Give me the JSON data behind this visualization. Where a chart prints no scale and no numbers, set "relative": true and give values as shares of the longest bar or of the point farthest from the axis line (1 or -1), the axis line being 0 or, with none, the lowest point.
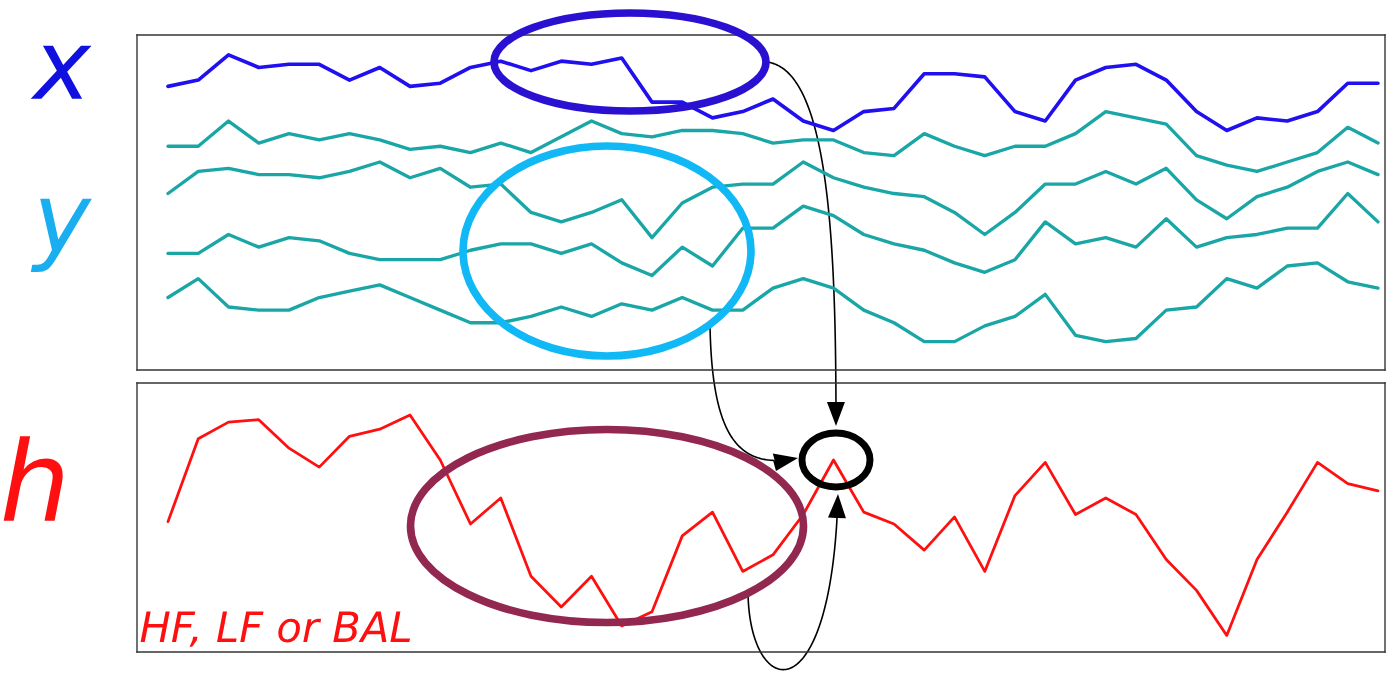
{
  "chart_data": [
    {
      "type": "line",
      "relative": true,
      "annotations": [
        "x",
        "y"
      ],
      "categories": [
        null,
        null,
        null,
        null,
        null,
        null,
        null,
        null,
        null,
        null,
        null,
        null,
        null,
        null,
        null,
        null,
        null,
        null,
        null,
        null,
        null,
        null,
        null,
        null,
        null,
        null,
        null,
        null,
        null,
        null,
        null,
        null,
        null,
        null,
        null,
        null,
        null,
        null,
        null,
        null,
        null
      ],
      "series": [
        {
          "color": "#2010f0",
          "values": [
            0.9,
            0.92,
            1,
            0.96,
            0.97,
            0.97,
            0.92,
            0.96,
            0.9,
            0.91,
            0.96,
            0.98,
            0.95,
            0.98,
            0.97,
            0.99,
            0.85,
            0.85,
            0.8,
            0.82,
            0.86,
            0.79,
            0.76,
            0.82,
            0.83,
            0.94,
            0.94,
            0.93,
            0.82,
            0.79,
            0.92,
            0.96,
            0.97,
            0.92,
            0.82,
            0.76,
            0.8,
            0.79,
            0.82,
            0.91,
            0.91
          ]
        },
        {
          "color": "#1aa6a6",
          "values": [
            0.71,
            0.71,
            0.79,
            0.72,
            0.75,
            0.73,
            0.75,
            0.73,
            0.7,
            0.71,
            0.69,
            0.72,
            0.69,
            0.74,
            0.79,
            0.75,
            0.74,
            0.76,
            0.76,
            0.75,
            0.72,
            0.73,
            0.73,
            0.69,
            0.68,
            0.75,
            0.71,
            0.68,
            0.71,
            0.71,
            0.75,
            0.82,
            0.8,
            0.78,
            0.68,
            0.65,
            0.63,
            0.66,
            0.69,
            0.77,
            0.72
          ]
        },
        {
          "color": "#1aa6a6",
          "values": [
            0.56,
            0.63,
            0.64,
            0.62,
            0.62,
            0.61,
            0.63,
            0.66,
            0.61,
            0.64,
            0.58,
            0.59,
            0.5,
            0.47,
            0.5,
            0.54,
            0.42,
            0.53,
            0.58,
            0.59,
            0.59,
            0.66,
            0.61,
            0.58,
            0.56,
            0.55,
            0.5,
            0.43,
            0.5,
            0.59,
            0.59,
            0.63,
            0.59,
            0.64,
            0.54,
            0.48,
            0.55,
            0.58,
            0.63,
            0.66,
            0.62
          ]
        },
        {
          "color": "#1aa6a6",
          "values": [
            0.37,
            0.37,
            0.43,
            0.39,
            0.42,
            0.41,
            0.37,
            0.35,
            0.35,
            0.35,
            0.38,
            0.4,
            0.4,
            0.37,
            0.4,
            0.34,
            0.3,
            0.39,
            0.33,
            0.45,
            0.45,
            0.52,
            0.49,
            0.43,
            0.4,
            0.38,
            0.34,
            0.31,
            0.35,
            0.47,
            0.4,
            0.42,
            0.39,
            0.48,
            0.39,
            0.42,
            0.43,
            0.45,
            0.45,
            0.56,
            0.47
          ]
        },
        {
          "color": "#1aa6a6",
          "values": [
            0.23,
            0.29,
            0.2,
            0.19,
            0.19,
            0.23,
            0.25,
            0.27,
            0.23,
            0.19,
            0.15,
            0.15,
            0.17,
            0.2,
            0.17,
            0.21,
            0.19,
            0.23,
            0.19,
            0.19,
            0.26,
            0.29,
            0.26,
            0.19,
            0.15,
            0.09,
            0.09,
            0.14,
            0.17,
            0.24,
            0.11,
            0.09,
            0.1,
            0.19,
            0.2,
            0.29,
            0.26,
            0.33,
            0.34,
            0.28,
            0.26
          ]
        }
      ]
    },
    {
      "type": "line",
      "relative": true,
      "annotations": [
        "h",
        "HF, LF or BAL"
      ],
      "categories": [
        null,
        null,
        null,
        null,
        null,
        null,
        null,
        null,
        null,
        null,
        null,
        null,
        null,
        null,
        null,
        null,
        null,
        null,
        null,
        null,
        null,
        null,
        null,
        null,
        null,
        null,
        null,
        null,
        null,
        null,
        null,
        null,
        null,
        null,
        null,
        null,
        null,
        null,
        null,
        null,
        null
      ],
      "series": [
        {
          "color": "#ff1010",
          "values": [
            0.55,
            0.9,
            0.97,
            0.98,
            0.86,
            0.78,
            0.91,
            0.94,
            1,
            0.81,
            0.54,
            0.65,
            0.32,
            0.19,
            0.32,
            0.11,
            0.17,
            0.49,
            0.59,
            0.34,
            0.41,
            0.58,
            0.81,
            0.59,
            0.54,
            0.43,
            0.57,
            0.34,
            0.66,
            0.8,
            0.58,
            0.65,
            0.58,
            0.39,
            0.26,
            0.07,
            0.39,
            0.59,
            0.8,
            0.71,
            0.68
          ]
        }
      ]
    }
  ]
}
